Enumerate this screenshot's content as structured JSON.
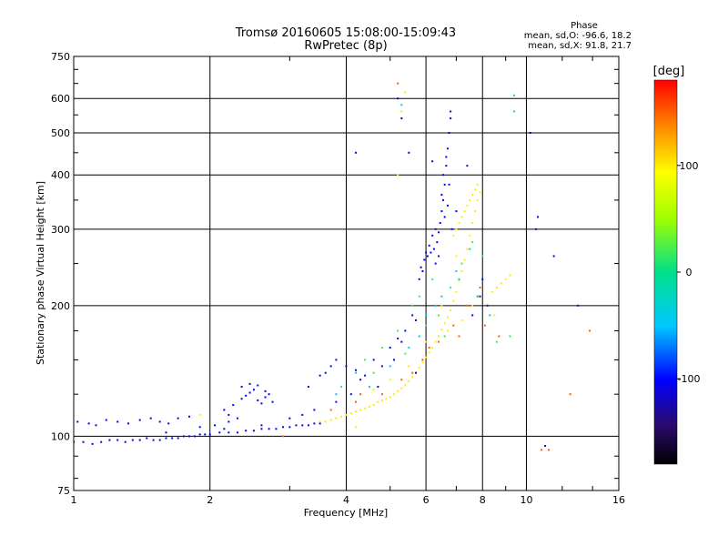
{
  "chart_data": {
    "type": "scatter",
    "title": "Tromsø 20160605 15:08:00-15:09:43",
    "subtitle": "RwPretec (8p)",
    "xlabel": "Frequency [MHz]",
    "ylabel": "Stationary phase Virtual Height [km]",
    "x_scale": "log",
    "y_scale": "log",
    "xlim": [
      1,
      16
    ],
    "ylim": [
      75,
      750
    ],
    "x_ticks": [
      1,
      2,
      4,
      6,
      8,
      10,
      16
    ],
    "x_tick_labels": [
      "1",
      "2",
      "4",
      "6",
      "8",
      "10",
      "16"
    ],
    "y_ticks": [
      75,
      100,
      200,
      300,
      400,
      500,
      600,
      750
    ],
    "y_tick_labels": [
      "75",
      "100",
      "200",
      "300",
      "400",
      "500",
      "600",
      "750"
    ],
    "grid": true,
    "stats": {
      "heading": "Phase",
      "o_line": "mean, sd,O: -96.6, 18.2",
      "x_line": "mean, sd,X:  91.8, 21.7"
    },
    "colorbar": {
      "label": "[deg]",
      "range": [
        -180,
        180
      ],
      "ticks": [
        100,
        0,
        -100
      ],
      "tick_labels": [
        "100",
        "0",
        "-100"
      ]
    },
    "series": [
      {
        "values": [
          [
            1.0,
            97
          ],
          [
            1.05,
            97
          ],
          [
            1.1,
            96
          ],
          [
            1.15,
            97
          ],
          [
            1.2,
            98
          ],
          [
            1.25,
            98
          ],
          [
            1.3,
            97
          ],
          [
            1.35,
            98
          ],
          [
            1.4,
            98
          ],
          [
            1.45,
            99
          ],
          [
            1.5,
            98
          ],
          [
            1.55,
            98
          ],
          [
            1.6,
            99
          ],
          [
            1.65,
            99
          ],
          [
            1.7,
            99
          ],
          [
            1.75,
            100
          ],
          [
            1.8,
            100
          ],
          [
            1.85,
            100
          ],
          [
            1.9,
            101
          ],
          [
            1.95,
            101
          ],
          [
            2.0,
            101
          ],
          [
            2.1,
            102
          ],
          [
            2.2,
            102
          ],
          [
            2.3,
            102
          ],
          [
            2.4,
            103
          ],
          [
            2.5,
            103
          ],
          [
            2.6,
            104
          ],
          [
            2.7,
            104
          ],
          [
            2.8,
            104
          ],
          [
            2.9,
            105
          ],
          [
            3.0,
            105
          ],
          [
            3.1,
            106
          ],
          [
            3.2,
            106
          ],
          [
            3.3,
            106
          ],
          [
            3.4,
            107
          ],
          [
            3.5,
            107
          ],
          [
            1.02,
            108
          ],
          [
            1.08,
            107
          ],
          [
            1.12,
            106
          ],
          [
            1.18,
            109
          ],
          [
            1.25,
            108
          ],
          [
            1.32,
            107
          ],
          [
            1.4,
            109
          ],
          [
            1.48,
            110
          ],
          [
            1.55,
            108
          ],
          [
            1.62,
            107
          ],
          [
            1.7,
            110
          ],
          [
            1.8,
            111
          ],
          [
            1.9,
            105
          ],
          [
            2.05,
            106
          ],
          [
            2.15,
            104
          ],
          [
            2.25,
            118
          ],
          [
            2.35,
            122
          ],
          [
            2.4,
            124
          ],
          [
            2.45,
            126
          ],
          [
            2.5,
            128
          ],
          [
            2.55,
            121
          ],
          [
            2.6,
            119
          ],
          [
            2.65,
            123
          ],
          [
            2.7,
            125
          ],
          [
            2.75,
            120
          ],
          [
            2.35,
            130
          ],
          [
            2.45,
            132
          ],
          [
            2.55,
            131
          ],
          [
            2.65,
            127
          ],
          [
            2.15,
            115
          ],
          [
            2.2,
            112
          ],
          [
            2.3,
            110
          ],
          [
            3.2,
            112
          ],
          [
            3.4,
            115
          ],
          [
            3.3,
            130
          ],
          [
            3.5,
            138
          ],
          [
            3.6,
            140
          ],
          [
            3.7,
            145
          ],
          [
            3.8,
            150
          ],
          [
            4.0,
            145
          ],
          [
            4.2,
            142
          ],
          [
            4.4,
            138
          ],
          [
            4.6,
            150
          ],
          [
            4.8,
            145
          ],
          [
            5.0,
            160
          ],
          [
            5.2,
            168
          ],
          [
            5.4,
            175
          ],
          [
            5.6,
            190
          ],
          [
            3.8,
            120
          ],
          [
            4.1,
            125
          ],
          [
            4.3,
            135
          ],
          [
            4.7,
            130
          ],
          [
            5.1,
            150
          ],
          [
            5.3,
            165
          ],
          [
            5.7,
            185
          ],
          [
            5.8,
            230
          ],
          [
            5.85,
            245
          ],
          [
            5.95,
            255
          ],
          [
            6.05,
            260
          ],
          [
            6.15,
            265
          ],
          [
            6.25,
            270
          ],
          [
            6.35,
            280
          ],
          [
            6.4,
            295
          ],
          [
            6.45,
            310
          ],
          [
            6.5,
            330
          ],
          [
            6.55,
            350
          ],
          [
            6.6,
            380
          ],
          [
            6.65,
            420
          ],
          [
            6.7,
            460
          ],
          [
            6.75,
            500
          ],
          [
            6.8,
            540
          ],
          [
            6.3,
            300
          ],
          [
            6.2,
            290
          ],
          [
            6.1,
            275
          ],
          [
            6.0,
            265
          ],
          [
            6.6,
            320
          ],
          [
            6.7,
            340
          ],
          [
            6.4,
            260
          ],
          [
            6.3,
            250
          ],
          [
            5.9,
            240
          ],
          [
            6.5,
            360
          ],
          [
            6.55,
            400
          ],
          [
            6.65,
            440
          ],
          [
            6.75,
            380
          ],
          [
            6.85,
            300
          ],
          [
            7.0,
            330
          ],
          [
            4.2,
            450
          ],
          [
            5.5,
            450
          ],
          [
            7.4,
            420
          ],
          [
            7.6,
            190
          ],
          [
            7.8,
            210
          ],
          [
            8.0,
            230
          ],
          [
            10.5,
            300
          ],
          [
            11.5,
            260
          ],
          [
            10.6,
            320
          ],
          [
            13.0,
            200
          ],
          [
            6.8,
            560
          ],
          [
            5.2,
            600
          ],
          [
            6.2,
            430
          ]
        ],
        "phase": -100
      },
      {
        "values": [
          [
            3.5,
            108
          ],
          [
            3.6,
            108
          ],
          [
            3.7,
            109
          ],
          [
            3.8,
            110
          ],
          [
            3.9,
            111
          ],
          [
            4.0,
            112
          ],
          [
            4.1,
            113
          ],
          [
            4.2,
            114
          ],
          [
            4.3,
            115
          ],
          [
            4.4,
            116
          ],
          [
            4.5,
            117
          ],
          [
            4.6,
            118
          ],
          [
            4.7,
            120
          ],
          [
            4.8,
            121
          ],
          [
            4.9,
            122
          ],
          [
            5.0,
            123
          ],
          [
            5.1,
            125
          ],
          [
            5.2,
            127
          ],
          [
            5.3,
            129
          ],
          [
            5.4,
            131
          ],
          [
            5.5,
            134
          ],
          [
            5.6,
            137
          ],
          [
            5.7,
            140
          ],
          [
            5.8,
            144
          ],
          [
            5.9,
            148
          ],
          [
            6.0,
            152
          ],
          [
            6.1,
            156
          ],
          [
            6.2,
            160
          ],
          [
            6.3,
            165
          ],
          [
            6.4,
            170
          ],
          [
            6.5,
            176
          ],
          [
            6.6,
            182
          ],
          [
            6.7,
            188
          ],
          [
            6.8,
            195
          ],
          [
            6.9,
            205
          ],
          [
            7.0,
            215
          ],
          [
            7.1,
            228
          ],
          [
            7.2,
            240
          ],
          [
            7.3,
            255
          ],
          [
            7.4,
            270
          ],
          [
            7.5,
            290
          ],
          [
            7.6,
            310
          ],
          [
            7.7,
            330
          ],
          [
            7.8,
            350
          ],
          [
            7.9,
            365
          ],
          [
            6.9,
            290
          ],
          [
            7.0,
            300
          ],
          [
            7.1,
            310
          ],
          [
            7.2,
            320
          ],
          [
            7.3,
            330
          ],
          [
            7.4,
            340
          ],
          [
            7.5,
            350
          ],
          [
            7.6,
            360
          ],
          [
            7.7,
            370
          ],
          [
            7.8,
            380
          ],
          [
            8.4,
            215
          ],
          [
            8.6,
            220
          ],
          [
            8.8,
            225
          ],
          [
            9.0,
            230
          ],
          [
            9.2,
            235
          ],
          [
            4.6,
            128
          ],
          [
            5.0,
            135
          ],
          [
            5.5,
            145
          ],
          [
            6.0,
            165
          ],
          [
            6.5,
            200
          ],
          [
            7.0,
            260
          ],
          [
            5.2,
            400
          ],
          [
            5.3,
            560
          ],
          [
            5.4,
            620
          ],
          [
            8.2,
            200
          ],
          [
            8.5,
            190
          ],
          [
            6.7,
            175
          ],
          [
            7.2,
            185
          ],
          [
            7.6,
            200
          ],
          [
            1.9,
            112
          ],
          [
            4.2,
            105
          ]
        ],
        "phase": 100
      },
      {
        "values": [
          [
            4.8,
            160
          ],
          [
            5.2,
            175
          ],
          [
            5.6,
            200
          ],
          [
            6.0,
            180
          ],
          [
            6.4,
            190
          ],
          [
            6.8,
            220
          ],
          [
            7.2,
            250
          ],
          [
            7.6,
            280
          ],
          [
            8.0,
            260
          ],
          [
            4.4,
            150
          ],
          [
            5.8,
            210
          ],
          [
            6.2,
            230
          ],
          [
            9.2,
            170
          ],
          [
            8.6,
            165
          ],
          [
            3.9,
            130
          ],
          [
            4.6,
            140
          ],
          [
            5.4,
            155
          ],
          [
            6.6,
            170
          ],
          [
            7.8,
            210
          ]
        ],
        "phase": 20
      },
      {
        "values": [
          [
            4.5,
            130
          ],
          [
            5.0,
            145
          ],
          [
            5.5,
            160
          ],
          [
            6.0,
            190
          ],
          [
            6.5,
            210
          ],
          [
            7.0,
            240
          ],
          [
            7.5,
            270
          ],
          [
            3.8,
            125
          ],
          [
            4.2,
            140
          ],
          [
            5.8,
            170
          ],
          [
            6.3,
            200
          ],
          [
            7.1,
            230
          ],
          [
            8.3,
            190
          ],
          [
            9.4,
            610
          ],
          [
            9.4,
            560
          ],
          [
            5.3,
            580
          ]
        ],
        "phase": -40
      },
      {
        "values": [
          [
            3.7,
            115
          ],
          [
            4.2,
            120
          ],
          [
            4.8,
            125
          ],
          [
            5.3,
            135
          ],
          [
            5.9,
            150
          ],
          [
            6.4,
            165
          ],
          [
            6.9,
            180
          ],
          [
            7.4,
            200
          ],
          [
            7.9,
            220
          ],
          [
            5.2,
            650
          ],
          [
            4.3,
            125
          ],
          [
            5.6,
            140
          ],
          [
            6.1,
            160
          ],
          [
            7.1,
            170
          ],
          [
            2.9,
            100
          ],
          [
            10.8,
            93
          ],
          [
            11.2,
            93
          ],
          [
            8.1,
            180
          ],
          [
            8.7,
            170
          ],
          [
            12.5,
            125
          ],
          [
            13.8,
            175
          ]
        ],
        "phase": 150
      },
      {
        "values": [
          [
            2.2,
            108
          ],
          [
            2.6,
            106
          ],
          [
            3.0,
            110
          ],
          [
            5.3,
            540
          ],
          [
            7.9,
            210
          ],
          [
            8.2,
            200
          ],
          [
            1.6,
            102
          ],
          [
            10.2,
            500
          ],
          [
            11.0,
            95
          ],
          [
            5.7,
            140
          ]
        ],
        "phase": -130
      }
    ]
  }
}
